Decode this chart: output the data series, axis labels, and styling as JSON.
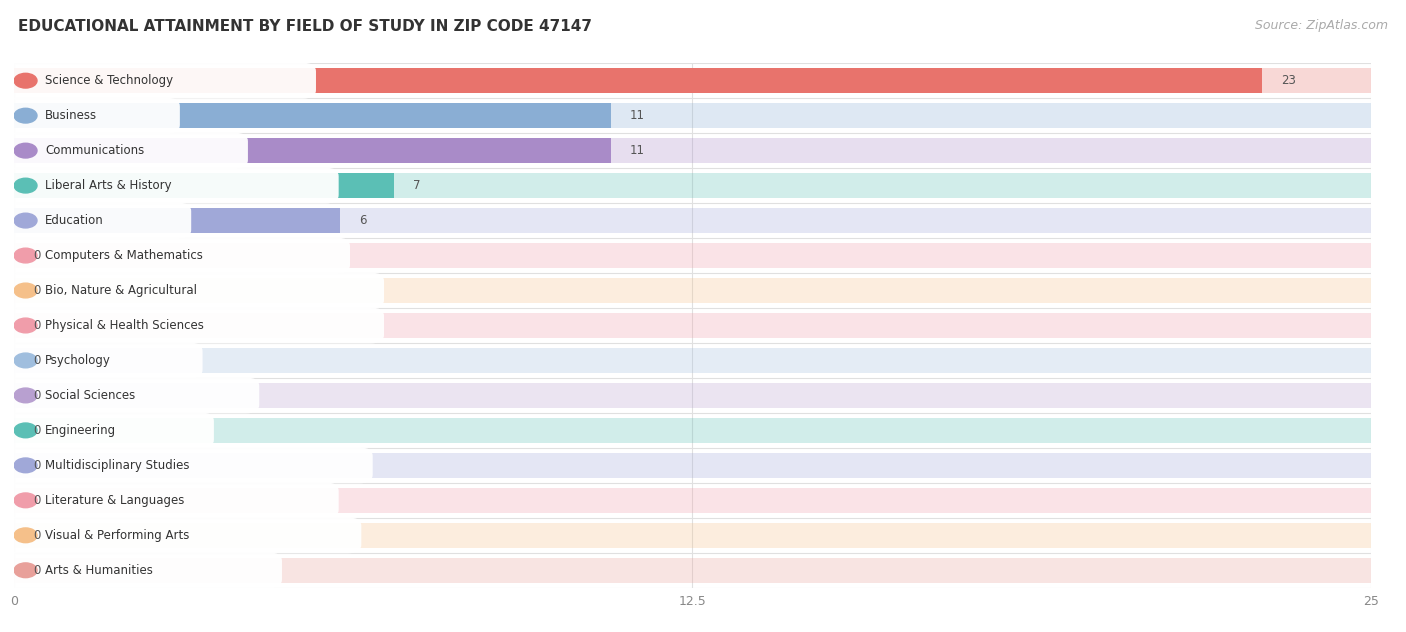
{
  "title": "EDUCATIONAL ATTAINMENT BY FIELD OF STUDY IN ZIP CODE 47147",
  "source": "Source: ZipAtlas.com",
  "categories": [
    "Science & Technology",
    "Business",
    "Communications",
    "Liberal Arts & History",
    "Education",
    "Computers & Mathematics",
    "Bio, Nature & Agricultural",
    "Physical & Health Sciences",
    "Psychology",
    "Social Sciences",
    "Engineering",
    "Multidisciplinary Studies",
    "Literature & Languages",
    "Visual & Performing Arts",
    "Arts & Humanities"
  ],
  "values": [
    23,
    11,
    11,
    7,
    6,
    0,
    0,
    0,
    0,
    0,
    0,
    0,
    0,
    0,
    0
  ],
  "bar_colors": [
    "#E8736C",
    "#8AAED4",
    "#A98BC8",
    "#5BBFB5",
    "#A0A8D8",
    "#F09DAA",
    "#F5C08A",
    "#F09DAA",
    "#A0BEDE",
    "#B8A0D0",
    "#5BBFB5",
    "#A0A8D8",
    "#F09DAA",
    "#F5C08A",
    "#E8A09A"
  ],
  "xlim": [
    0,
    25
  ],
  "xticks": [
    0,
    12.5,
    25
  ],
  "background_color": "#ffffff",
  "row_line_color": "#e0e0e0",
  "title_fontsize": 11,
  "source_fontsize": 9,
  "bar_height": 0.72,
  "bar_alpha_bg": 0.28
}
